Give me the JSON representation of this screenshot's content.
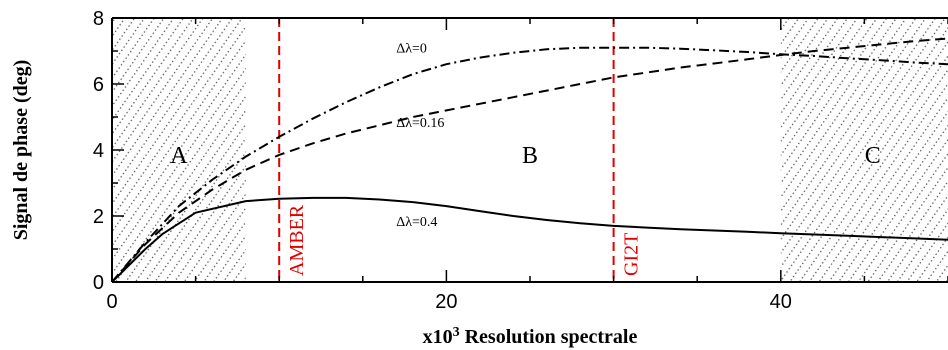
{
  "chart_data": {
    "type": "line",
    "xlabel": "x10",
    "xlabel_sup": "3",
    "xlabel_rest": " Resolution spectrale",
    "ylabel": "Signal de phase (deg)",
    "xlim": [
      0,
      50
    ],
    "ylim": [
      0,
      8
    ],
    "xticks": [
      0,
      20,
      40
    ],
    "yticks": [
      0,
      2,
      4,
      6,
      8
    ],
    "grid": false,
    "series": [
      {
        "name": "Δλ=0",
        "style": "dash-dot",
        "x": [
          0,
          2,
          4,
          6,
          8,
          10,
          12,
          14,
          16,
          18,
          20,
          22,
          24,
          26,
          28,
          30,
          32,
          34,
          36,
          38,
          40,
          42,
          44,
          46,
          48,
          50
        ],
        "y": [
          0,
          1.2,
          2.3,
          3.1,
          3.8,
          4.4,
          4.95,
          5.45,
          5.9,
          6.3,
          6.6,
          6.8,
          6.95,
          7.05,
          7.1,
          7.1,
          7.1,
          7.07,
          7.02,
          6.97,
          6.9,
          6.85,
          6.78,
          6.72,
          6.65,
          6.6
        ]
      },
      {
        "name": "Δλ=0.16",
        "style": "dashed",
        "x": [
          0,
          2,
          4,
          6,
          8,
          10,
          12,
          14,
          16,
          18,
          20,
          22,
          24,
          26,
          28,
          30,
          32,
          34,
          36,
          38,
          40,
          42,
          44,
          46,
          48,
          50
        ],
        "y": [
          0,
          1.15,
          2.1,
          2.8,
          3.4,
          3.85,
          4.2,
          4.5,
          4.75,
          5.0,
          5.2,
          5.4,
          5.6,
          5.8,
          6.0,
          6.2,
          6.35,
          6.5,
          6.62,
          6.75,
          6.88,
          7.0,
          7.1,
          7.2,
          7.3,
          7.38
        ]
      },
      {
        "name": "Δλ=0.4",
        "style": "solid",
        "x": [
          0,
          2,
          3,
          5,
          8,
          10,
          12,
          14,
          16,
          18,
          20,
          22,
          24,
          26,
          28,
          30,
          32,
          34,
          36,
          38,
          40,
          42,
          44,
          46,
          48,
          50
        ],
        "y": [
          0,
          1.0,
          1.45,
          2.1,
          2.45,
          2.52,
          2.55,
          2.55,
          2.5,
          2.42,
          2.3,
          2.15,
          2.0,
          1.88,
          1.78,
          1.7,
          1.65,
          1.6,
          1.56,
          1.52,
          1.48,
          1.44,
          1.4,
          1.36,
          1.32,
          1.28
        ]
      }
    ],
    "annotations": [
      {
        "text": "Δλ=0",
        "x": 17,
        "y": 6.95
      },
      {
        "text": "Δλ=0.16",
        "x": 17,
        "y": 4.7
      },
      {
        "text": "Δλ=0.4",
        "x": 17,
        "y": 1.7
      }
    ],
    "vlines": [
      {
        "label": "AMBER",
        "x": 10,
        "color": "#e00000"
      },
      {
        "label": "GI2T",
        "x": 30,
        "color": "#e00000"
      }
    ],
    "regions": [
      {
        "label": "A",
        "x_from": 0,
        "x_to": 8,
        "hatched": true,
        "label_x": 4,
        "label_y": 3.6
      },
      {
        "label": "B",
        "x_from": 10,
        "x_to": 40,
        "hatched": false,
        "label_x": 25,
        "label_y": 3.6
      },
      {
        "label": "C",
        "x_from": 40,
        "x_to": 50,
        "hatched": true,
        "label_x": 45.5,
        "label_y": 3.6
      }
    ]
  }
}
